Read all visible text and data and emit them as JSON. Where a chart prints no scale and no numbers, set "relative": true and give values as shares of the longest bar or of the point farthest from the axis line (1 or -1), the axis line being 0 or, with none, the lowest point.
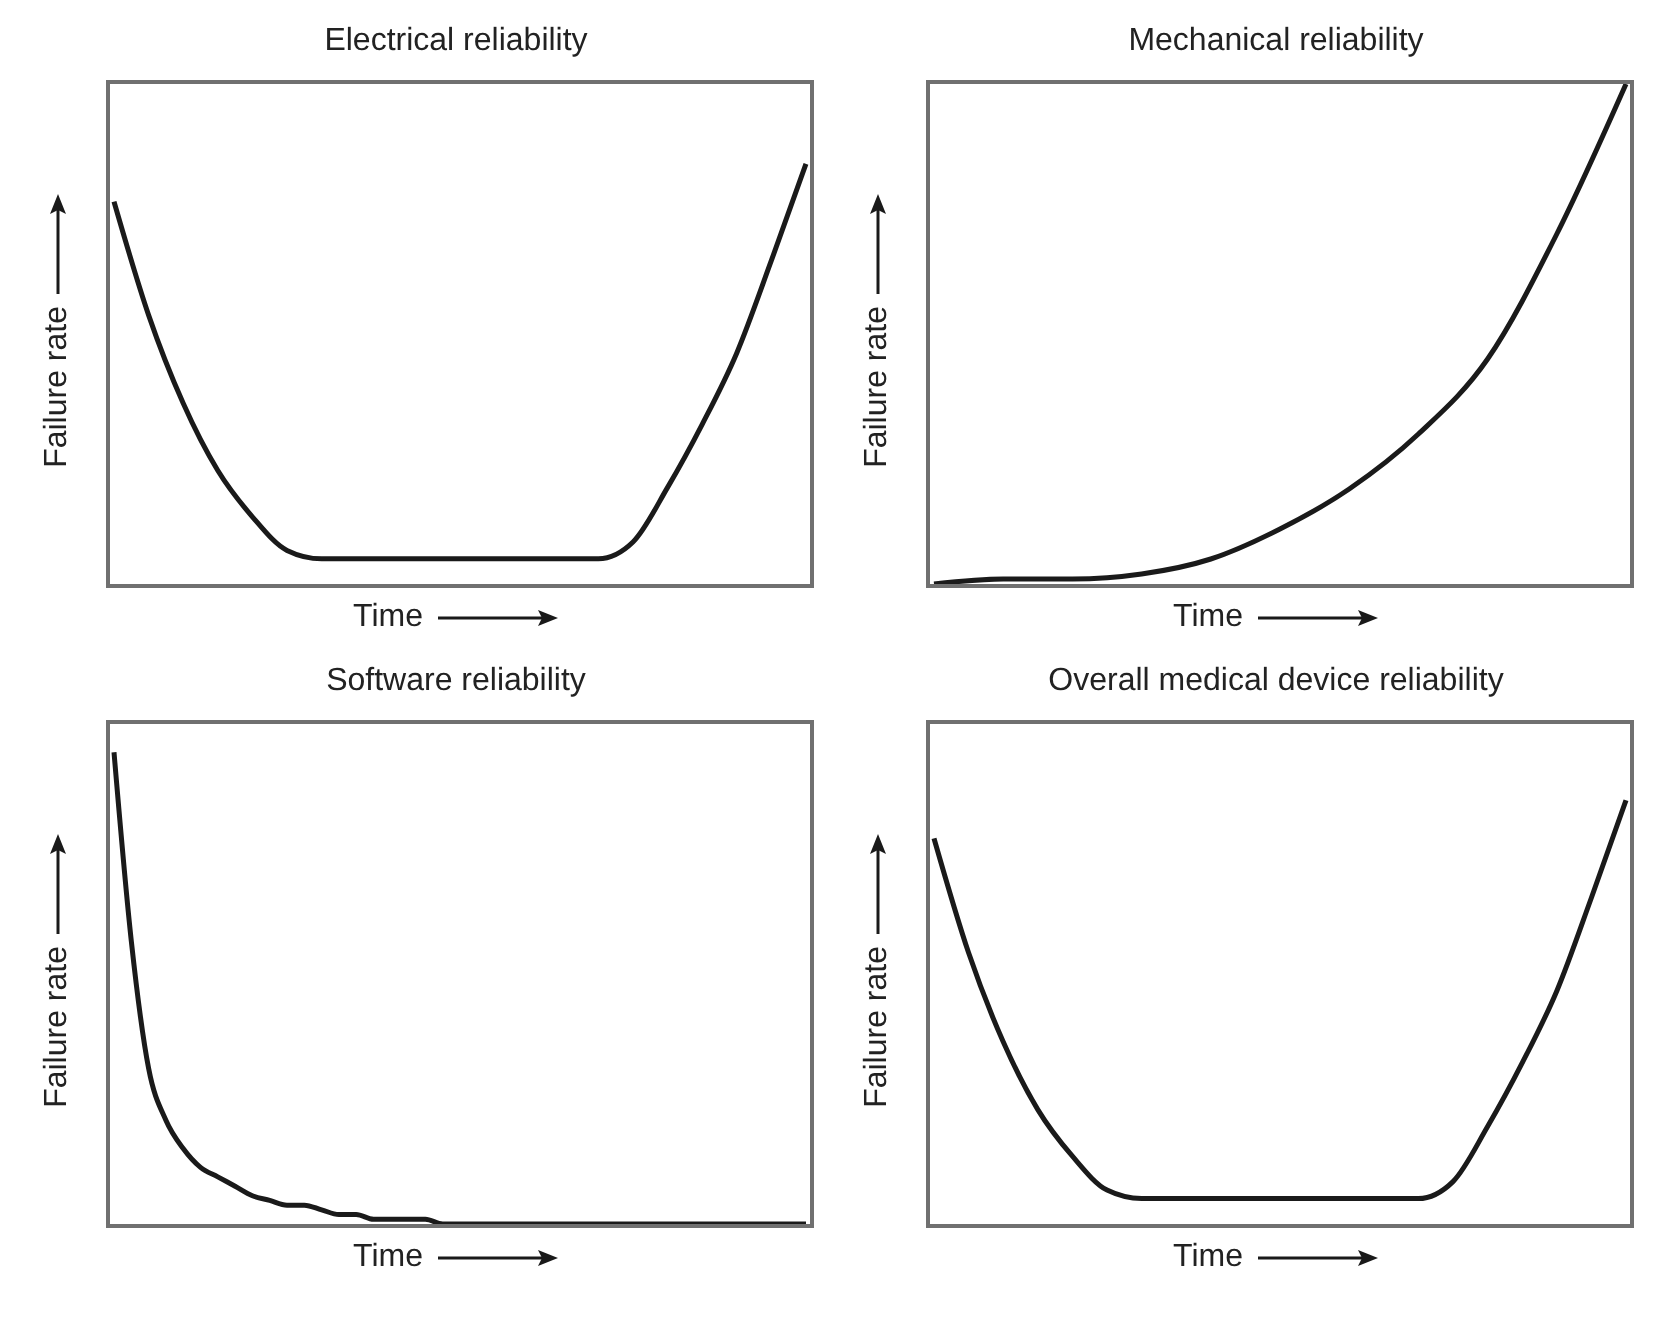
{
  "chart_data": [
    {
      "type": "line",
      "title": "Electrical reliability",
      "xlabel": "Time",
      "ylabel": "Failure rate",
      "relative": true,
      "color": "#1a1a1a",
      "categories": [
        null,
        null,
        null,
        null,
        null,
        null,
        null,
        null,
        null,
        null,
        null,
        null,
        null,
        null,
        null,
        null,
        null,
        null,
        null,
        null,
        null
      ],
      "values": [
        0.91,
        0.64,
        0.43,
        0.27,
        0.16,
        0.08,
        0.06,
        0.06,
        0.06,
        0.06,
        0.06,
        0.06,
        0.06,
        0.06,
        0.06,
        0.1,
        0.23,
        0.38,
        0.55,
        0.77,
        1
      ]
    },
    {
      "type": "line",
      "title": "Mechanical reliability",
      "xlabel": "Time",
      "ylabel": "Failure rate",
      "relative": true,
      "color": "#1a1a1a",
      "categories": [
        null,
        null,
        null,
        null,
        null,
        null,
        null,
        null,
        null,
        null,
        null
      ],
      "values": [
        0,
        0.01,
        0.01,
        0.02,
        0.05,
        0.11,
        0.19,
        0.3,
        0.45,
        0.7,
        1
      ]
    },
    {
      "type": "line",
      "title": "Software reliability",
      "xlabel": "Time",
      "ylabel": "Failure rate",
      "relative": true,
      "color": "#1a1a1a",
      "categories": [
        null,
        null,
        null,
        null,
        null,
        null,
        null,
        null,
        null,
        null,
        null,
        null,
        null,
        null,
        null,
        null,
        null,
        null,
        null,
        null,
        null,
        null,
        null,
        null,
        null,
        null,
        null,
        null,
        null,
        null,
        null,
        null,
        null,
        null,
        null,
        null,
        null,
        null,
        null,
        null,
        null
      ],
      "values": [
        1,
        0.6,
        0.33,
        0.22,
        0.16,
        0.12,
        0.1,
        0.08,
        0.06,
        0.05,
        0.04,
        0.04,
        0.03,
        0.02,
        0.02,
        0.01,
        0.01,
        0.01,
        0.01,
        0,
        0,
        0,
        0,
        0,
        0,
        0,
        0,
        0,
        0,
        0,
        0,
        0,
        0,
        0,
        0,
        0,
        0,
        0,
        0,
        0,
        0
      ]
    },
    {
      "type": "line",
      "title": "Overall medical device reliability",
      "xlabel": "Time",
      "ylabel": "Failure rate",
      "relative": true,
      "color": "#1a1a1a",
      "categories": [
        null,
        null,
        null,
        null,
        null,
        null,
        null,
        null,
        null,
        null,
        null,
        null,
        null,
        null,
        null,
        null,
        null,
        null,
        null,
        null,
        null
      ],
      "values": [
        0.91,
        0.64,
        0.43,
        0.27,
        0.16,
        0.08,
        0.06,
        0.06,
        0.06,
        0.06,
        0.06,
        0.06,
        0.06,
        0.06,
        0.06,
        0.1,
        0.23,
        0.38,
        0.55,
        0.77,
        1
      ]
    }
  ]
}
